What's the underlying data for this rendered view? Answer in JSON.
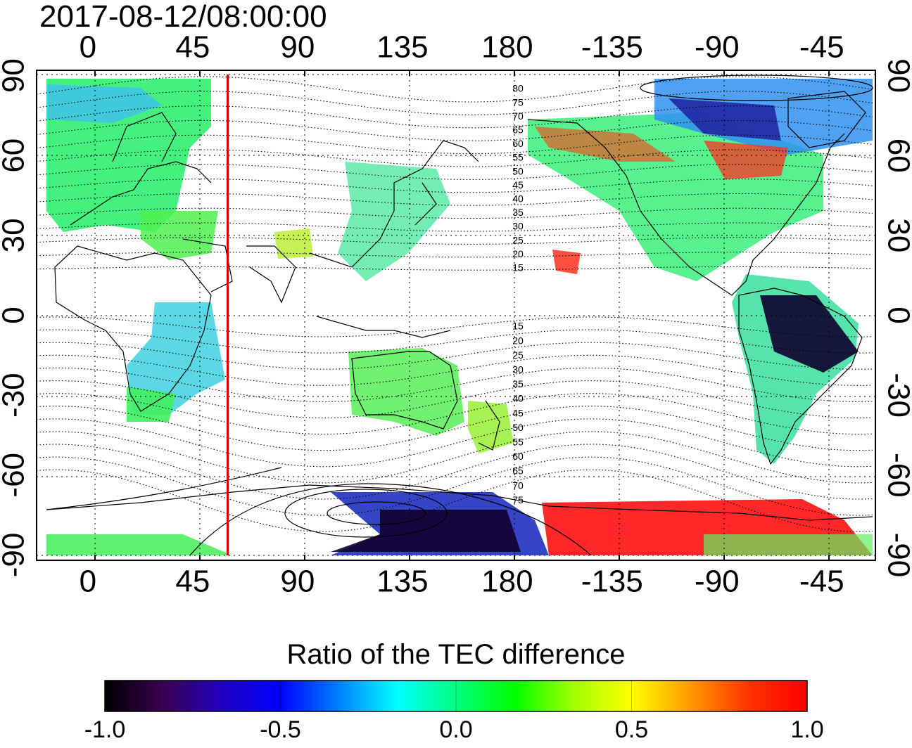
{
  "title": "2017-08-12/08:00:00",
  "map": {
    "lon_ticks_top": [
      "0",
      "45",
      "90",
      "135",
      "180",
      "-135",
      "-90",
      "-45"
    ],
    "lon_ticks_bottom": [
      "0",
      "45",
      "90",
      "135",
      "180",
      "-135",
      "-90",
      "-45"
    ],
    "lat_ticks_left": [
      "90",
      "60",
      "30",
      "0",
      "-30",
      "-60",
      "-90"
    ],
    "lat_ticks_right": [
      "90",
      "60",
      "30",
      "0",
      "-30",
      "-60",
      "-90"
    ],
    "lon_range": [
      -22,
      338
    ],
    "lat_range": [
      -92,
      92
    ],
    "marker_meridian_lon": 60,
    "marker_color": "#cc0000",
    "contour_labels_north": [
      "80",
      "75",
      "70",
      "65",
      "60",
      "55",
      "50",
      "45",
      "40",
      "35",
      "30",
      "25",
      "20",
      "15"
    ],
    "contour_labels_south": [
      "15",
      "20",
      "25",
      "30",
      "35",
      "40",
      "45",
      "50",
      "55",
      "60",
      "65",
      "70",
      "75"
    ]
  },
  "colorbar": {
    "title": "Ratio of the TEC difference",
    "tick_labels": [
      "-1.0",
      "-0.5",
      "0.0",
      "0.5",
      "1.0"
    ],
    "range": [
      -1.0,
      1.0
    ],
    "colors": [
      "#000000",
      "#3a0050",
      "#2000c0",
      "#0000ff",
      "#0080ff",
      "#00ffff",
      "#00ff80",
      "#00ff00",
      "#a0ff00",
      "#ffff00",
      "#ff9900",
      "#ff3300",
      "#ff0000"
    ]
  }
}
